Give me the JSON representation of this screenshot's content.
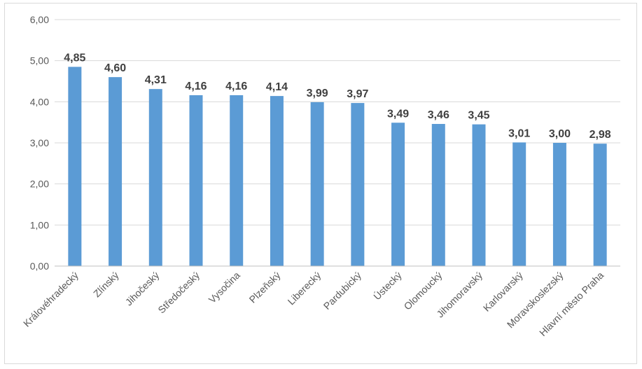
{
  "chart_data": {
    "type": "bar",
    "title": "",
    "xlabel": "",
    "ylabel": "",
    "ylim": [
      0,
      6
    ],
    "y_ticks": [
      "0,00",
      "1,00",
      "2,00",
      "3,00",
      "4,00",
      "5,00",
      "6,00"
    ],
    "grid": true,
    "legend": "none",
    "bar_color": "#5b9bd5",
    "categories": [
      "Královéhradecký",
      "Zlínský",
      "Jihočeský",
      "Středočeský",
      "Vysočina",
      "Plzeňský",
      "Liberecký",
      "Pardubický",
      "Ústecký",
      "Olomoucký",
      "Jihomoravský",
      "Karlovarský",
      "Moravskoslezský",
      "Hlavní město Praha"
    ],
    "values": [
      4.85,
      4.6,
      4.31,
      4.16,
      4.16,
      4.14,
      3.99,
      3.97,
      3.49,
      3.46,
      3.45,
      3.01,
      3.0,
      2.98
    ],
    "data_labels": [
      "4,85",
      "4,60",
      "4,31",
      "4,16",
      "4,16",
      "4,14",
      "3,99",
      "3,97",
      "3,49",
      "3,46",
      "3,45",
      "3,01",
      "3,00",
      "2,98"
    ]
  }
}
